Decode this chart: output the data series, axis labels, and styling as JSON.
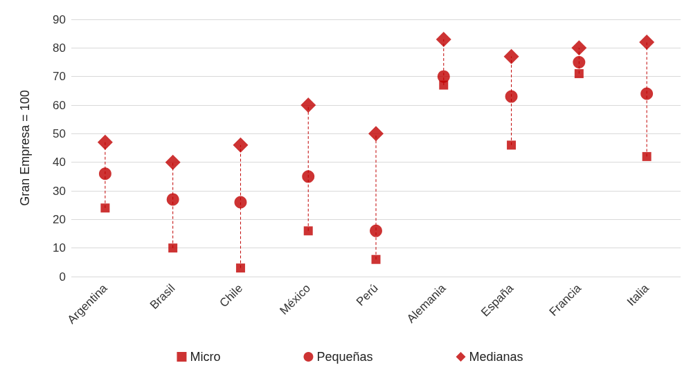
{
  "chart_data": {
    "type": "scatter",
    "ylabel": "Gran Empresa = 100",
    "categories": [
      "Argentina",
      "Brasil",
      "Chile",
      "México",
      "Perú",
      "Alemania",
      "España",
      "Francia",
      "Italia"
    ],
    "series": [
      {
        "name": "Micro",
        "color": "#c00000",
        "marker": "square",
        "values": [
          24,
          10,
          3,
          16,
          6,
          67,
          46,
          71,
          42
        ]
      },
      {
        "name": "Pequeñas",
        "color": "#c00000",
        "marker": "circle",
        "values": [
          36,
          27,
          26,
          35,
          16,
          70,
          63,
          75,
          64
        ]
      },
      {
        "name": "Medianas",
        "color": "#c00000",
        "marker": "diamond",
        "values": [
          47,
          40,
          46,
          60,
          50,
          83,
          77,
          80,
          82
        ]
      }
    ],
    "ylim": [
      0,
      90
    ],
    "yticks": [
      0,
      10,
      20,
      30,
      40,
      50,
      60,
      70,
      80,
      90
    ],
    "grid": "y",
    "legend": "bottom",
    "line_style": "dashed"
  }
}
